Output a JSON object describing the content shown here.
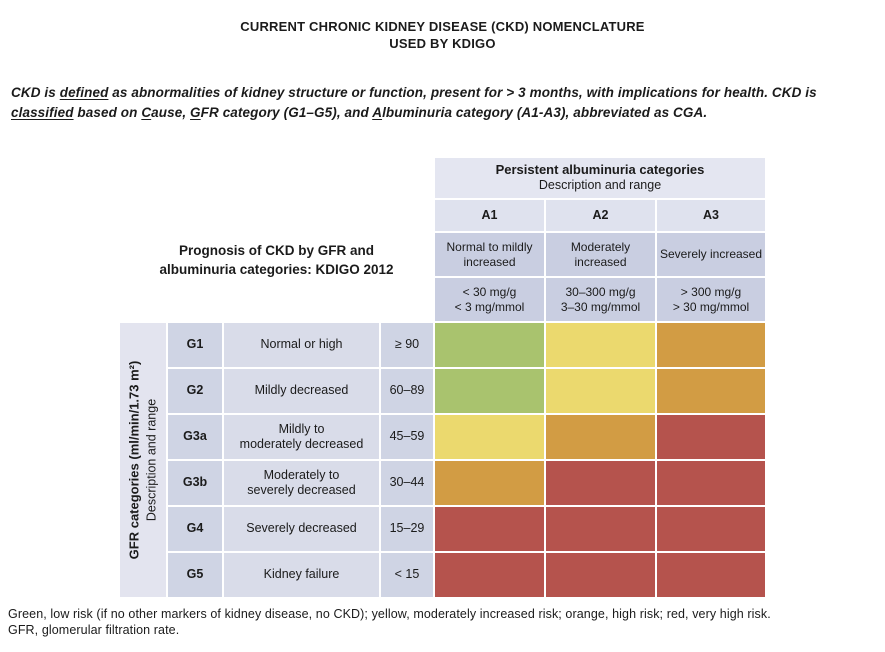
{
  "title": {
    "line1": "CURRENT CHRONIC KIDNEY DISEASE (CKD) NOMENCLATURE",
    "line2": "USED BY KDIGO"
  },
  "intro": {
    "segments": [
      {
        "t": "CKD is "
      },
      {
        "t": "defined",
        "u": true
      },
      {
        "t": " as abnormalities of kidney structure or function, present for > 3 months, with implications for health. CKD is "
      },
      {
        "t": "classified",
        "u": true
      },
      {
        "t": " based on "
      },
      {
        "t": "C",
        "u": true
      },
      {
        "t": "ause, "
      },
      {
        "t": "G",
        "u": true
      },
      {
        "t": "FR category (G1–G5), and "
      },
      {
        "t": "A",
        "u": true
      },
      {
        "t": "lbuminuria category (A1-A3), abbreviated as CGA."
      }
    ]
  },
  "prognosis_label": {
    "line1": "Prognosis of CKD by GFR and",
    "line2": "albuminuria categories: KDIGO 2012"
  },
  "albuminuria_header": {
    "title": "Persistent albuminuria categories",
    "subtitle": "Description and range",
    "columns": [
      {
        "code": "A1",
        "description": "Normal to mildly increased",
        "range": "< 30 mg/g\n< 3 mg/mmol"
      },
      {
        "code": "A2",
        "description": "Moderately increased",
        "range": "30–300 mg/g\n3–30 mg/mmol"
      },
      {
        "code": "A3",
        "description": "Severely increased",
        "range": "> 300 mg/g\n> 30 mg/mmol"
      }
    ]
  },
  "gfr_axis": {
    "label_bold": "GFR categories (ml/min/1.73 m²)",
    "label_regular": "Description and range"
  },
  "gfr_rows": [
    {
      "code": "G1",
      "description": "Normal or high",
      "range": "≥ 90"
    },
    {
      "code": "G2",
      "description": "Mildly decreased",
      "range": "60–89"
    },
    {
      "code": "G3a",
      "description": "Mildly to\nmoderately decreased",
      "range": "45–59"
    },
    {
      "code": "G3b",
      "description": "Moderately to\nseverely decreased",
      "range": "30–44"
    },
    {
      "code": "G4",
      "description": "Severely decreased",
      "range": "15–29"
    },
    {
      "code": "G5",
      "description": "Kidney failure",
      "range": "< 15"
    }
  ],
  "risk_colors": {
    "low": "#a9c36e",
    "moderately_increased": "#ebd96e",
    "high": "#d29c44",
    "very_high": "#b5534d"
  },
  "risk_matrix": {
    "cells": [
      {
        "g": "G1",
        "a": "A1",
        "risk": "low",
        "color": "#a9c36e"
      },
      {
        "g": "G1",
        "a": "A2",
        "risk": "moderately increased",
        "color": "#ebd96e"
      },
      {
        "g": "G1",
        "a": "A3",
        "risk": "high",
        "color": "#d29c44"
      },
      {
        "g": "G2",
        "a": "A1",
        "risk": "low",
        "color": "#a9c36e"
      },
      {
        "g": "G2",
        "a": "A2",
        "risk": "moderately increased",
        "color": "#ebd96e"
      },
      {
        "g": "G2",
        "a": "A3",
        "risk": "high",
        "color": "#d29c44"
      },
      {
        "g": "G3a",
        "a": "A1",
        "risk": "moderately increased",
        "color": "#ebd96e"
      },
      {
        "g": "G3a",
        "a": "A2",
        "risk": "high",
        "color": "#d29c44"
      },
      {
        "g": "G3a",
        "a": "A3",
        "risk": "very high",
        "color": "#b5534d"
      },
      {
        "g": "G3b",
        "a": "A1",
        "risk": "high",
        "color": "#d29c44"
      },
      {
        "g": "G3b",
        "a": "A2",
        "risk": "very high",
        "color": "#b5534d"
      },
      {
        "g": "G3b",
        "a": "A3",
        "risk": "very high",
        "color": "#b5534d"
      },
      {
        "g": "G4",
        "a": "A1",
        "risk": "very high",
        "color": "#b5534d"
      },
      {
        "g": "G4",
        "a": "A2",
        "risk": "very high",
        "color": "#b5534d"
      },
      {
        "g": "G4",
        "a": "A3",
        "risk": "very high",
        "color": "#b5534d"
      },
      {
        "g": "G5",
        "a": "A1",
        "risk": "very high",
        "color": "#b5534d"
      },
      {
        "g": "G5",
        "a": "A2",
        "risk": "very high",
        "color": "#b5534d"
      },
      {
        "g": "G5",
        "a": "A3",
        "risk": "very high",
        "color": "#b5534d"
      }
    ]
  },
  "legend": {
    "line1": "Green, low risk (if no other markers of kidney disease, no CKD); yellow, moderately increased risk; orange, high risk; red, very high risk.",
    "line2": "GFR, glomerular filtration rate."
  },
  "header_colors": {
    "light_lavender": "#e4e6f1",
    "code_lavender": "#dfe2ee",
    "dark_lavender": "#c9cee1",
    "strip_lavender": "#e3e4ef",
    "left_cell_lavender": "#cfd4e4",
    "desc_cell_lavender": "#d9dce9"
  }
}
